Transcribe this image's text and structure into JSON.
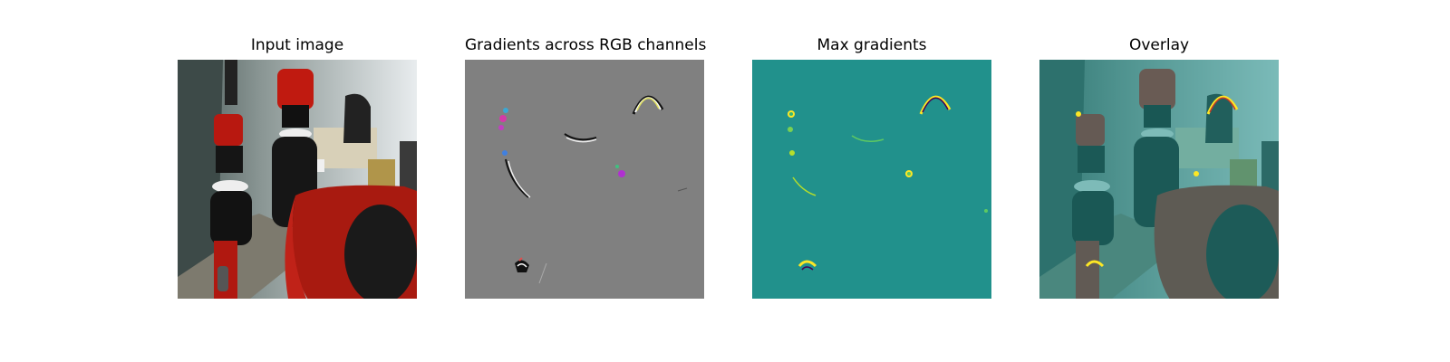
{
  "figure": {
    "panels": [
      {
        "title": "Input image",
        "image": "robot-lab-photo"
      },
      {
        "title": "Gradients across RGB channels",
        "image": "rgb-gradient-map"
      },
      {
        "title": "Max gradients",
        "image": "max-gradient-heatmap"
      },
      {
        "title": "Overlay",
        "image": "gradient-overlay-photo"
      }
    ],
    "colors": {
      "background": "#ffffff",
      "gradient_gray": "#808080",
      "heatmap_teal": "#21918c",
      "robot_red": "#b51a10",
      "highlight_yellow": "#fde725"
    }
  }
}
